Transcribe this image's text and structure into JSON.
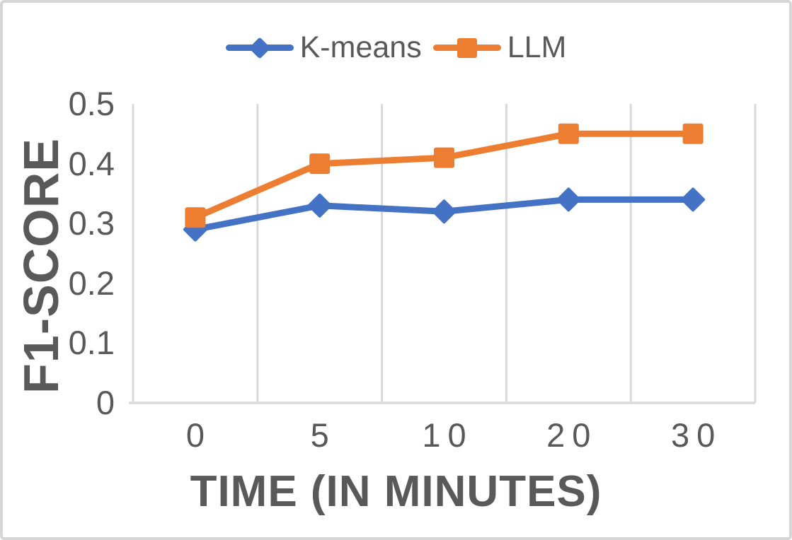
{
  "chart_data": {
    "type": "line",
    "title": "",
    "xlabel": "TIME (IN MINUTES)",
    "ylabel": "F1-SCORE",
    "categories": [
      "0",
      "5",
      "10",
      "20",
      "30"
    ],
    "series": [
      {
        "name": "K-means",
        "color": "#4472C4",
        "marker": "diamond",
        "values": [
          0.29,
          0.33,
          0.32,
          0.34,
          0.34
        ]
      },
      {
        "name": "LLM",
        "color": "#ED7D31",
        "marker": "square",
        "values": [
          0.31,
          0.4,
          0.41,
          0.45,
          0.45
        ]
      }
    ],
    "ylim": [
      0,
      0.5
    ],
    "ytick_labels": [
      "0",
      "0.1",
      "0.2",
      "0.3",
      "0.4",
      "0.5"
    ],
    "grid": "vertical-only",
    "legend_position": "top-center",
    "colors": {
      "gridline": "#D9D9D9",
      "axis_line": "#D9D9D9",
      "tick_text": "#595959",
      "axis_title_text": "#595959",
      "legend_text": "#595959",
      "background": "#FFFFFF",
      "frame_border": "#D6D6D6"
    }
  }
}
